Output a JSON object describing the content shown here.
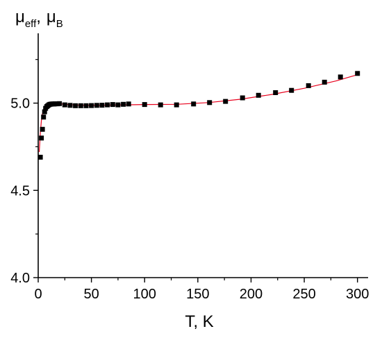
{
  "chart_data": {
    "type": "scatter",
    "title": "",
    "xlabel": "T, K",
    "ylabel_main": "μ",
    "ylabel_sub": "eff",
    "ylabel_sep": ",",
    "ylabel_main2": "μ",
    "ylabel_sub2": "B",
    "xlim": [
      0,
      310
    ],
    "ylim": [
      4.0,
      5.4
    ],
    "x_ticks": [
      0,
      50,
      100,
      150,
      200,
      250,
      300
    ],
    "x_tick_labels": [
      "0",
      "50",
      "100",
      "150",
      "200",
      "250",
      "300"
    ],
    "y_ticks": [
      4.0,
      4.5,
      5.0
    ],
    "y_tick_labels": [
      "4.0",
      "4.5",
      "5.0"
    ],
    "grid": false,
    "legend": "none",
    "series": [
      {
        "kind": "points",
        "marker": "square",
        "color": "#000000",
        "x": [
          2,
          3,
          4,
          5,
          6,
          7,
          8,
          9,
          10,
          11,
          12,
          13,
          14,
          15,
          16,
          18,
          20,
          25,
          30,
          35,
          40,
          45,
          50,
          55,
          60,
          65,
          70,
          75,
          80,
          85,
          100,
          115,
          130,
          146,
          161,
          176,
          192,
          207,
          223,
          238,
          254,
          269,
          284,
          300
        ],
        "y": [
          4.69,
          4.8,
          4.85,
          4.92,
          4.95,
          4.97,
          4.98,
          4.985,
          4.99,
          4.993,
          4.994,
          4.995,
          4.995,
          4.995,
          4.996,
          4.996,
          4.997,
          4.99,
          4.987,
          4.985,
          4.985,
          4.985,
          4.986,
          4.987,
          4.988,
          4.99,
          4.992,
          4.99,
          4.993,
          4.995,
          4.992,
          4.99,
          4.99,
          4.995,
          5.003,
          5.01,
          5.03,
          5.045,
          5.06,
          5.073,
          5.1,
          5.12,
          5.15,
          5.17
        ]
      },
      {
        "kind": "fit-line",
        "color": "#e8001c",
        "x": [
          1,
          2,
          3,
          4,
          5,
          6,
          7,
          8,
          10,
          12,
          15,
          20,
          30,
          40,
          60,
          80,
          100,
          130,
          160,
          190,
          220,
          250,
          280,
          300
        ],
        "y": [
          4.72,
          4.83,
          4.9,
          4.94,
          4.96,
          4.975,
          4.983,
          4.988,
          4.993,
          4.995,
          4.996,
          4.996,
          4.991,
          4.988,
          4.988,
          4.99,
          4.992,
          4.993,
          5.003,
          5.022,
          5.05,
          5.085,
          5.127,
          5.163
        ]
      }
    ]
  }
}
